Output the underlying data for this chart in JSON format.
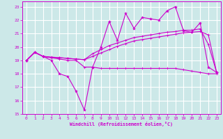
{
  "xlabel": "Windchill (Refroidissement éolien,°C)",
  "bg_color": "#cce8e8",
  "grid_color": "#ffffff",
  "line_color": "#cc00cc",
  "xlim": [
    -0.5,
    23.5
  ],
  "ylim": [
    15,
    23.4
  ],
  "xticks": [
    0,
    1,
    2,
    3,
    4,
    5,
    6,
    7,
    8,
    9,
    10,
    11,
    12,
    13,
    14,
    15,
    16,
    17,
    18,
    19,
    20,
    21,
    22,
    23
  ],
  "yticks": [
    15,
    16,
    17,
    18,
    19,
    20,
    21,
    22,
    23
  ],
  "line1_x": [
    0,
    1,
    2,
    3,
    4,
    5,
    6,
    7,
    8,
    9,
    10,
    11,
    12,
    13,
    14,
    15,
    16,
    17,
    18,
    19,
    20,
    21,
    22,
    23
  ],
  "line1_y": [
    19.0,
    19.6,
    19.3,
    19.0,
    18.0,
    17.8,
    16.7,
    15.3,
    18.5,
    20.0,
    21.9,
    20.5,
    22.5,
    21.4,
    22.2,
    22.1,
    22.0,
    22.7,
    23.0,
    21.2,
    21.1,
    21.8,
    18.5,
    18.1
  ],
  "line2_x": [
    0,
    1,
    2,
    3,
    4,
    5,
    6,
    7,
    8,
    9,
    10,
    11,
    12,
    13,
    14,
    15,
    16,
    17,
    18,
    19,
    20,
    21,
    22,
    23
  ],
  "line2_y": [
    19.0,
    19.6,
    19.3,
    19.2,
    19.2,
    19.15,
    19.1,
    19.05,
    19.3,
    19.55,
    19.8,
    20.05,
    20.25,
    20.45,
    20.55,
    20.65,
    20.75,
    20.85,
    20.95,
    21.05,
    21.1,
    21.15,
    20.9,
    18.1
  ],
  "line3_x": [
    0,
    1,
    2,
    3,
    4,
    5,
    6,
    7,
    8,
    9,
    10,
    11,
    12,
    13,
    14,
    15,
    16,
    17,
    18,
    19,
    20,
    21,
    22,
    23
  ],
  "line3_y": [
    19.0,
    19.6,
    19.3,
    19.25,
    19.2,
    19.15,
    19.1,
    19.05,
    19.5,
    19.8,
    20.1,
    20.3,
    20.5,
    20.7,
    20.8,
    20.9,
    21.0,
    21.1,
    21.15,
    21.25,
    21.25,
    21.35,
    20.2,
    18.1
  ],
  "line4_x": [
    0,
    1,
    2,
    3,
    4,
    5,
    6,
    7,
    8,
    9,
    10,
    11,
    12,
    13,
    14,
    15,
    16,
    17,
    18,
    19,
    20,
    21,
    22,
    23
  ],
  "line4_y": [
    19.0,
    19.6,
    19.3,
    19.2,
    19.1,
    19.0,
    19.0,
    18.5,
    18.5,
    18.4,
    18.4,
    18.4,
    18.4,
    18.4,
    18.4,
    18.4,
    18.4,
    18.4,
    18.4,
    18.3,
    18.2,
    18.1,
    18.0,
    18.0
  ]
}
